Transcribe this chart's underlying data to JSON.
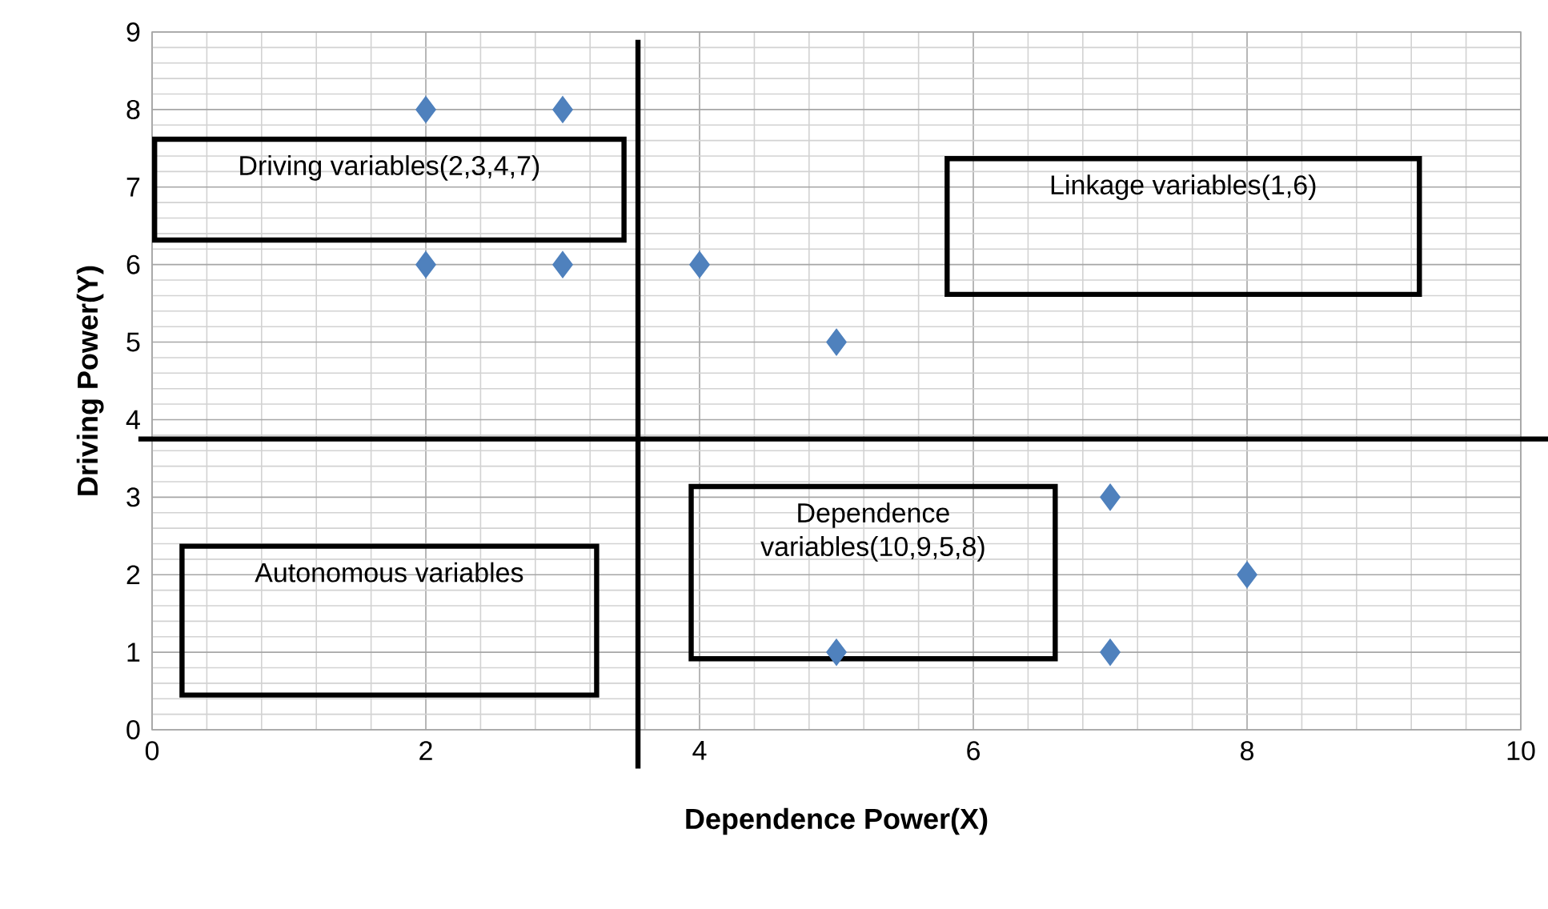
{
  "chart_data": {
    "type": "scatter",
    "xlabel": "Dependence Power(X)",
    "ylabel": "Driving Power(Y)",
    "x": [
      2,
      3,
      2,
      3,
      4,
      5,
      7,
      8,
      7,
      5
    ],
    "values": [
      8,
      8,
      6,
      6,
      6,
      5,
      3,
      2,
      1,
      1
    ],
    "color": "#4f81bd",
    "marker": "diamond",
    "grid": true,
    "xlim": [
      0,
      10
    ],
    "xticks": [
      0,
      2,
      4,
      6,
      8,
      10
    ],
    "ylim": [
      0,
      9
    ],
    "yticks": [
      0,
      1,
      2,
      3,
      4,
      5,
      6,
      7,
      8,
      9
    ],
    "ref_lines": [
      {
        "axis": "x",
        "value": 3.55,
        "color": "#000000"
      },
      {
        "axis": "y",
        "value": 3.75,
        "color": "#000000"
      }
    ],
    "annotations": [
      "Driving variables(2,3,4,7)",
      "Linkage variables(1,6)",
      "Autonomous variables",
      "Dependence variables(10,9,5,8)"
    ]
  }
}
